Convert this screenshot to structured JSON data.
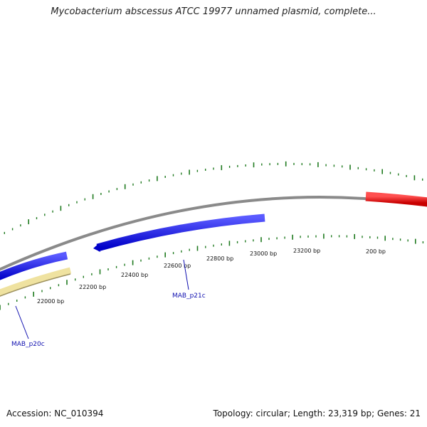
{
  "title": "Mycobacterium abscessus ATCC 19977 unnamed plasmid, complete...",
  "footer": {
    "accession": "Accession: NC_010394",
    "summary": "Topology: circular; Length: 23,319 bp; Genes: 21"
  },
  "colors": {
    "backbone": "#808080",
    "tick": "#1f7a1f",
    "gene_blue": "#1414e6",
    "gene_yellow": "#f2e6a0",
    "gene_red": "#e01010",
    "label": "#1010b0"
  },
  "tick_labels": [
    "22000 bp",
    "22200 bp",
    "22400 bp",
    "22600 bp",
    "22800 bp",
    "23000 bp",
    "23200 bp",
    "200 bp"
  ],
  "genes": [
    {
      "name": "MAB_p20c",
      "color": "yellow"
    },
    {
      "name": "",
      "color": "blue"
    },
    {
      "name": "MAB_p21c",
      "color": "blue"
    },
    {
      "name": "",
      "color": "red"
    }
  ],
  "gene_labels": [
    "MAB_p20c",
    "MAB_p21c"
  ]
}
